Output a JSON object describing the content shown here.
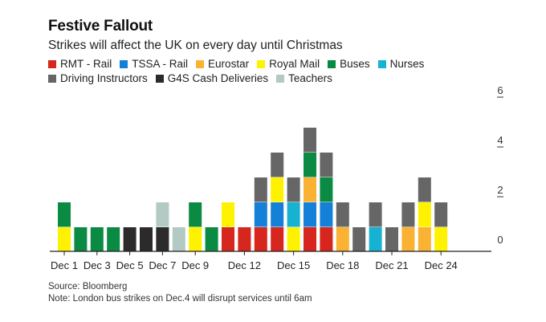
{
  "chart_data": {
    "type": "bar",
    "stacked": true,
    "title": "Festive Fallout",
    "subtitle": "Strikes will affect the UK on every day until Christmas",
    "xlabel": "",
    "ylabel": "",
    "ylim": [
      0,
      6
    ],
    "yticks": [
      0,
      2,
      4,
      6
    ],
    "y_axis_position": "right",
    "legend_position": "top-left",
    "grid": false,
    "categories": [
      "Dec 1",
      "Dec 2",
      "Dec 3",
      "Dec 4",
      "Dec 5",
      "Dec 6",
      "Dec 7",
      "Dec 8",
      "Dec 9",
      "Dec 10",
      "Dec 11",
      "Dec 12",
      "Dec 13",
      "Dec 14",
      "Dec 15",
      "Dec 16",
      "Dec 17",
      "Dec 18",
      "Dec 19",
      "Dec 20",
      "Dec 21",
      "Dec 22",
      "Dec 23",
      "Dec 24"
    ],
    "xtick_labels": [
      {
        "index": 0,
        "label": "Dec 1"
      },
      {
        "index": 2,
        "label": "Dec 3"
      },
      {
        "index": 4,
        "label": "Dec 5"
      },
      {
        "index": 6,
        "label": "Dec 7"
      },
      {
        "index": 8,
        "label": "Dec 9"
      },
      {
        "index": 11,
        "label": "Dec 12"
      },
      {
        "index": 14,
        "label": "Dec 15"
      },
      {
        "index": 17,
        "label": "Dec 18"
      },
      {
        "index": 20,
        "label": "Dec 21"
      },
      {
        "index": 23,
        "label": "Dec 24"
      }
    ],
    "series": [
      {
        "name": "RMT - Rail",
        "color": "#d7261e",
        "values": [
          0,
          0,
          0,
          0,
          0,
          0,
          0,
          0,
          0,
          0,
          1,
          1,
          1,
          1,
          0,
          1,
          1,
          0,
          0,
          0,
          0,
          0,
          0,
          0
        ]
      },
      {
        "name": "TSSA - Rail",
        "color": "#1580d8",
        "values": [
          0,
          0,
          0,
          0,
          0,
          0,
          0,
          0,
          0,
          0,
          0,
          0,
          1,
          1,
          0,
          1,
          1,
          0,
          0,
          0,
          0,
          0,
          0,
          0
        ]
      },
      {
        "name": "Eurostar",
        "color": "#f9b233",
        "values": [
          0,
          0,
          0,
          0,
          0,
          0,
          0,
          0,
          0,
          0,
          0,
          0,
          0,
          0,
          0,
          1,
          0,
          1,
          0,
          0,
          0,
          1,
          1,
          0
        ]
      },
      {
        "name": "Royal Mail",
        "color": "#fff200",
        "values": [
          1,
          0,
          0,
          0,
          0,
          0,
          0,
          0,
          1,
          0,
          1,
          0,
          0,
          1,
          1,
          0,
          0,
          0,
          0,
          0,
          0,
          0,
          1,
          1
        ]
      },
      {
        "name": "Buses",
        "color": "#0a8a43",
        "values": [
          1,
          1,
          1,
          1,
          0,
          0,
          0,
          0,
          1,
          1,
          0,
          0,
          0,
          0,
          0,
          1,
          1,
          0,
          0,
          0,
          0,
          0,
          0,
          0
        ]
      },
      {
        "name": "Nurses",
        "color": "#17b1d1",
        "values": [
          0,
          0,
          0,
          0,
          0,
          0,
          0,
          0,
          0,
          0,
          0,
          0,
          0,
          0,
          1,
          0,
          0,
          0,
          0,
          1,
          0,
          0,
          0,
          0
        ]
      },
      {
        "name": "Driving Instructors",
        "color": "#666666",
        "values": [
          0,
          0,
          0,
          0,
          0,
          0,
          0,
          0,
          0,
          0,
          0,
          0,
          1,
          1,
          1,
          1,
          1,
          1,
          1,
          1,
          1,
          1,
          1,
          1
        ]
      },
      {
        "name": "G4S Cash Deliveries",
        "color": "#2b2b2b",
        "values": [
          0,
          0,
          0,
          0,
          1,
          1,
          1,
          0,
          0,
          0,
          0,
          0,
          0,
          0,
          0,
          0,
          0,
          0,
          0,
          0,
          0,
          0,
          0,
          0
        ]
      },
      {
        "name": "Teachers",
        "color": "#b3c9c4",
        "values": [
          0,
          0,
          0,
          0,
          0,
          0,
          1,
          1,
          0,
          0,
          0,
          0,
          0,
          0,
          0,
          0,
          0,
          0,
          0,
          0,
          0,
          0,
          0,
          0
        ]
      }
    ],
    "stack_order_bottom_to_top": [
      [
        "Royal Mail",
        "Buses"
      ],
      [
        "Buses"
      ],
      [
        "Buses"
      ],
      [
        "Buses"
      ],
      [
        "G4S Cash Deliveries"
      ],
      [
        "G4S Cash Deliveries"
      ],
      [
        "G4S Cash Deliveries",
        "Teachers"
      ],
      [
        "Teachers"
      ],
      [
        "Royal Mail",
        "Buses"
      ],
      [
        "Buses"
      ],
      [
        "RMT - Rail",
        "Royal Mail"
      ],
      [
        "RMT - Rail"
      ],
      [
        "RMT - Rail",
        "TSSA - Rail",
        "Driving Instructors"
      ],
      [
        "RMT - Rail",
        "TSSA - Rail",
        "Royal Mail",
        "Driving Instructors"
      ],
      [
        "Royal Mail",
        "Nurses",
        "Driving Instructors"
      ],
      [
        "RMT - Rail",
        "TSSA - Rail",
        "Eurostar",
        "Buses",
        "Driving Instructors"
      ],
      [
        "RMT - Rail",
        "TSSA - Rail",
        "Buses",
        "Driving Instructors"
      ],
      [
        "Eurostar",
        "Driving Instructors"
      ],
      [
        "Driving Instructors"
      ],
      [
        "Nurses",
        "Driving Instructors"
      ],
      [
        "Driving Instructors"
      ],
      [
        "Eurostar",
        "Driving Instructors"
      ],
      [
        "Eurostar",
        "Royal Mail",
        "Driving Instructors"
      ],
      [
        "Royal Mail",
        "Driving Instructors"
      ]
    ]
  },
  "legend": {
    "rows": [
      [
        {
          "label": "RMT - Rail",
          "color": "#d7261e"
        },
        {
          "label": "TSSA - Rail",
          "color": "#1580d8"
        },
        {
          "label": "Eurostar",
          "color": "#f9b233"
        },
        {
          "label": "Royal Mail",
          "color": "#fff200"
        },
        {
          "label": "Buses",
          "color": "#0a8a43"
        },
        {
          "label": "Nurses",
          "color": "#17b1d1"
        }
      ],
      [
        {
          "label": "Driving Instructors",
          "color": "#666666"
        },
        {
          "label": "G4S Cash Deliveries",
          "color": "#2b2b2b"
        },
        {
          "label": "Teachers",
          "color": "#b3c9c4"
        }
      ]
    ]
  },
  "footer": {
    "source": "Source: Bloomberg",
    "note": "Note: London bus strikes on Dec.4 will disrupt services until 6am"
  }
}
